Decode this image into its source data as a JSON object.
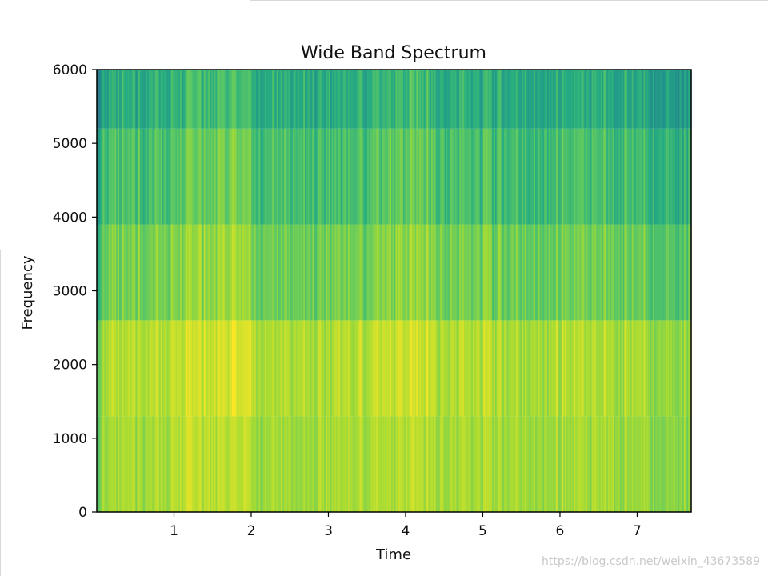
{
  "chart_data": {
    "type": "heatmap",
    "title": "Wide Band Spectrum",
    "xlabel": "Time",
    "ylabel": "Frequency",
    "xlim": [
      0.0,
      7.7
    ],
    "ylim": [
      0,
      6000
    ],
    "x_ticks": [
      1,
      2,
      3,
      4,
      5,
      6,
      7
    ],
    "y_ticks": [
      0,
      1000,
      2000,
      3000,
      4000,
      5000,
      6000
    ],
    "colormap": "viridis",
    "frequency_bands": [
      {
        "from": 0,
        "to": 1300,
        "level": 0.86
      },
      {
        "from": 1300,
        "to": 2600,
        "level": 0.88
      },
      {
        "from": 2600,
        "to": 3900,
        "level": 0.78
      },
      {
        "from": 3900,
        "to": 5200,
        "level": 0.7
      },
      {
        "from": 5200,
        "to": 6000,
        "level": 0.62
      }
    ],
    "time_bins": 400,
    "grid": false
  },
  "watermark": "https://blog.csdn.net/weixin_43673589"
}
